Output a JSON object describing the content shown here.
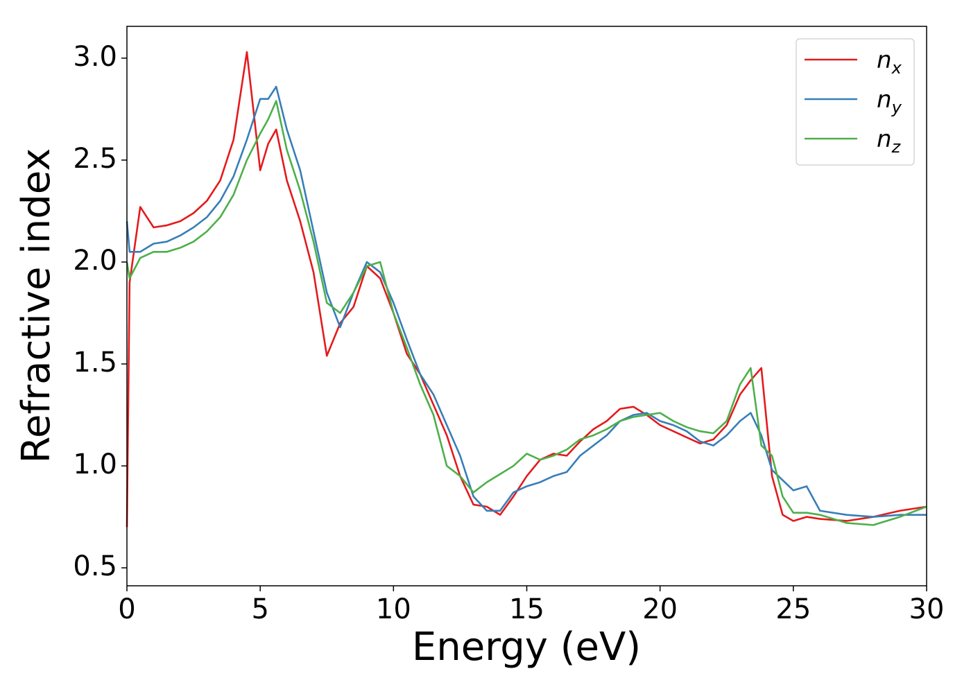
{
  "chart_data": {
    "type": "line",
    "xlabel": "Energy (eV)",
    "ylabel": "Refractive index",
    "xlim": [
      0,
      30
    ],
    "ylim": [
      0.412,
      3.156
    ],
    "xticks": [
      0,
      5,
      10,
      15,
      20,
      25,
      30
    ],
    "yticks": [
      0.5,
      {
        "value": 1,
        "label": "1.0"
      },
      1.5,
      {
        "value": 2,
        "label": "2.0"
      },
      2.5,
      {
        "value": 3,
        "label": "3.0"
      }
    ],
    "grid": false,
    "legend": "upper right",
    "x": [
      0,
      0.1,
      0.5,
      1,
      1.5,
      2,
      2.5,
      3,
      3.5,
      4,
      4.5,
      5,
      5.3,
      5.6,
      6,
      6.5,
      7,
      7.5,
      8,
      8.5,
      9,
      9.5,
      10,
      10.5,
      11,
      11.5,
      12,
      12.5,
      13,
      13.5,
      14,
      14.5,
      15,
      15.5,
      16,
      16.5,
      17,
      17.5,
      18,
      18.5,
      19,
      19.5,
      20,
      20.5,
      21,
      21.5,
      22,
      22.5,
      23,
      23.4,
      23.8,
      24.2,
      24.6,
      25,
      25.5,
      26,
      27,
      28,
      29,
      30
    ],
    "series": [
      {
        "name": "n_x",
        "color": "#e41a1c",
        "values": [
          0.7,
          1.9,
          2.27,
          2.17,
          2.18,
          2.2,
          2.24,
          2.3,
          2.4,
          2.6,
          3.03,
          2.45,
          2.58,
          2.65,
          2.4,
          2.2,
          1.95,
          1.54,
          1.7,
          1.78,
          1.98,
          1.92,
          1.75,
          1.55,
          1.45,
          1.3,
          1.15,
          0.95,
          0.81,
          0.8,
          0.76,
          0.85,
          0.95,
          1.03,
          1.06,
          1.05,
          1.12,
          1.18,
          1.22,
          1.28,
          1.29,
          1.25,
          1.2,
          1.17,
          1.14,
          1.11,
          1.13,
          1.2,
          1.35,
          1.42,
          1.48,
          0.95,
          0.76,
          0.73,
          0.75,
          0.74,
          0.73,
          0.75,
          0.78,
          0.8
        ]
      },
      {
        "name": "n_y",
        "color": "#377eb8",
        "values": [
          2.2,
          2.05,
          2.05,
          2.09,
          2.1,
          2.13,
          2.17,
          2.22,
          2.3,
          2.42,
          2.6,
          2.8,
          2.8,
          2.86,
          2.65,
          2.45,
          2.15,
          1.85,
          1.68,
          1.85,
          2.0,
          1.95,
          1.8,
          1.62,
          1.45,
          1.35,
          1.2,
          1.05,
          0.85,
          0.78,
          0.78,
          0.87,
          0.9,
          0.92,
          0.95,
          0.97,
          1.05,
          1.1,
          1.15,
          1.22,
          1.25,
          1.26,
          1.22,
          1.2,
          1.17,
          1.12,
          1.1,
          1.15,
          1.22,
          1.26,
          1.15,
          0.98,
          0.93,
          0.88,
          0.9,
          0.78,
          0.76,
          0.75,
          0.76,
          0.76
        ]
      },
      {
        "name": "n_z",
        "color": "#4daf4a",
        "values": [
          2.0,
          1.92,
          2.02,
          2.05,
          2.05,
          2.07,
          2.1,
          2.15,
          2.22,
          2.33,
          2.5,
          2.63,
          2.7,
          2.79,
          2.55,
          2.35,
          2.1,
          1.8,
          1.75,
          1.85,
          1.98,
          2.0,
          1.75,
          1.58,
          1.4,
          1.25,
          1.0,
          0.95,
          0.87,
          0.92,
          0.96,
          1.0,
          1.06,
          1.03,
          1.05,
          1.08,
          1.13,
          1.15,
          1.18,
          1.22,
          1.24,
          1.25,
          1.26,
          1.22,
          1.19,
          1.17,
          1.16,
          1.22,
          1.4,
          1.48,
          1.1,
          1.05,
          0.85,
          0.77,
          0.77,
          0.76,
          0.72,
          0.71,
          0.75,
          0.8
        ]
      }
    ]
  }
}
